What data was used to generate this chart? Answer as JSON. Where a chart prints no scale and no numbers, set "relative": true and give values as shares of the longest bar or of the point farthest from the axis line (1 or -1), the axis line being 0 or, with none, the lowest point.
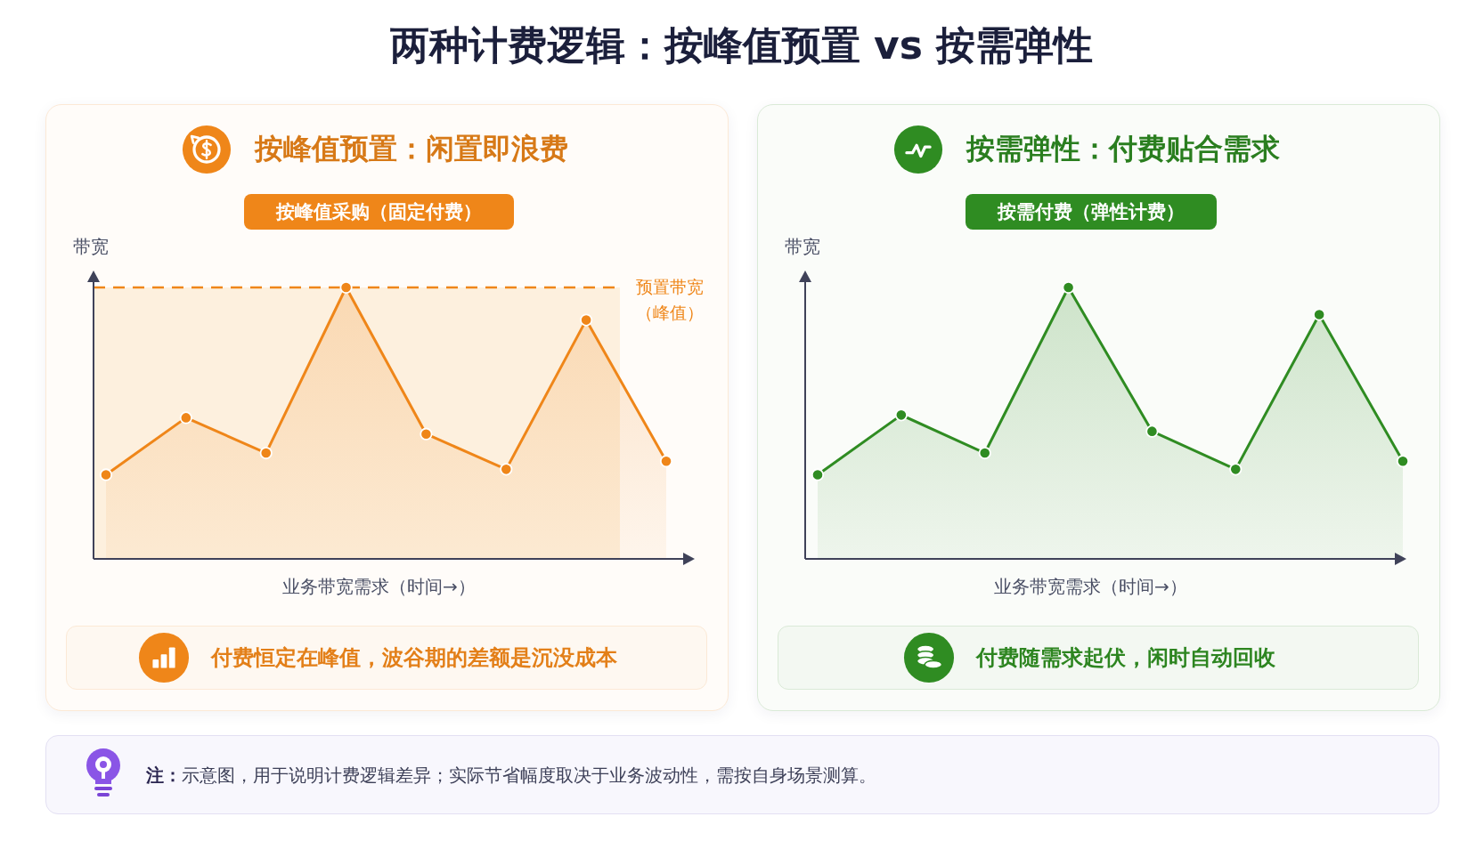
{
  "chart_data": [
    {
      "type": "other",
      "title": "两种计费逻辑：按峰值预置 vs 按需弹性"
    },
    {
      "type": "area",
      "title": "按峰值预置：闲置即浪费",
      "subtitle": "按峰值采购（固定付费）",
      "ylabel": "带宽",
      "xlabel": "业务带宽需求（时间→）",
      "categories": [
        null,
        null,
        null,
        null,
        null,
        null,
        null,
        null
      ],
      "series": [
        {
          "color": "#ef8619",
          "values": [
            0.31,
            0.52,
            0.39,
            1,
            0.46,
            0.33,
            0.88,
            0.36
          ]
        }
      ],
      "relative": true,
      "marker": "circle",
      "ref_lines": [
        {
          "axis": "y",
          "value": 1,
          "label": "预置带宽（峰值）",
          "color": "#ef8619",
          "line_style": "dashed"
        }
      ],
      "bands": [
        {
          "axis": "y",
          "from": 0,
          "to": 1,
          "color": "#fdf0de"
        }
      ],
      "annotations": [
        "付费恒定在峰值，波谷期的差额是沉没成本"
      ]
    },
    {
      "type": "area",
      "title": "按需弹性：付费贴合需求",
      "subtitle": "按需付费（弹性计费）",
      "ylabel": "带宽",
      "xlabel": "业务带宽需求（时间→）",
      "categories": [
        null,
        null,
        null,
        null,
        null,
        null,
        null,
        null
      ],
      "series": [
        {
          "color": "#2f8c22",
          "values": [
            0.31,
            0.53,
            0.39,
            1,
            0.47,
            0.33,
            0.9,
            0.36
          ]
        }
      ],
      "relative": true,
      "marker": "circle",
      "annotations": [
        "付费随需求起伏，闲时自动回收"
      ]
    },
    {
      "type": "other",
      "annotations": [
        "**注：**示意图，用于说明计费逻辑差异；实际节省幅度取决于业务波动性，需按自身场景测算。"
      ]
    }
  ]
}
